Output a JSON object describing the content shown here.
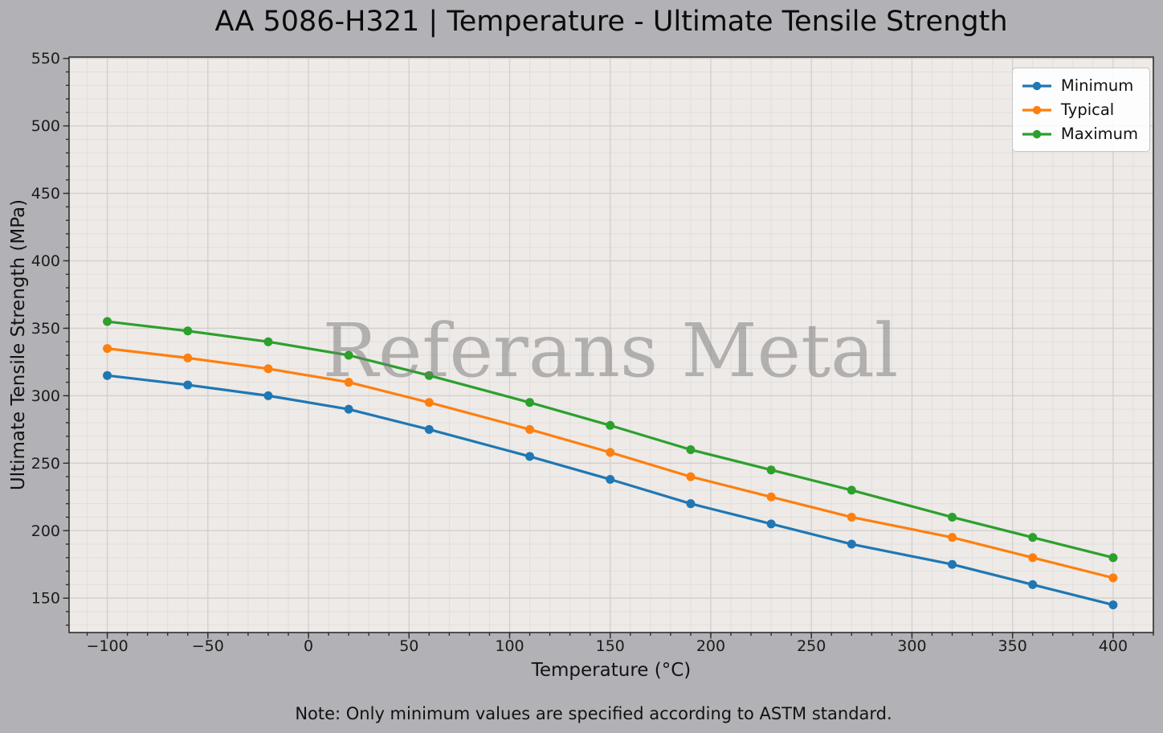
{
  "figure": {
    "background": "#b2b1b6",
    "plot_background": "#edeae8",
    "grid_minor_color": "#e1dedb",
    "grid_major_color": "#d2cfcd",
    "spine_color": "#2e2e2e",
    "tick_label_color": "#1b1b1b",
    "watermark_color": "#787878",
    "legend_background": "#ffffff",
    "legend_border_color": "#c6c6c6"
  },
  "chart_data": {
    "type": "line",
    "title": "AA 5086-H321 | Temperature - Ultimate Tensile Strength",
    "xlabel": "Temperature (°C)",
    "ylabel": "Ultimate Tensile Strength (MPa)",
    "note": "Note: Only minimum values are specified according to ASTM standard.",
    "watermark": "Referans Metal",
    "x": [
      -100,
      -60,
      -20,
      20,
      60,
      110,
      150,
      190,
      230,
      270,
      320,
      360,
      400
    ],
    "series": [
      {
        "name": "Minimum",
        "color": "#1f77b4",
        "values": [
          315,
          308,
          300,
          290,
          275,
          255,
          238,
          220,
          205,
          190,
          175,
          160,
          145
        ]
      },
      {
        "name": "Typical",
        "color": "#ff7f0e",
        "values": [
          335,
          328,
          320,
          310,
          295,
          275,
          258,
          240,
          225,
          210,
          195,
          180,
          165
        ]
      },
      {
        "name": "Maximum",
        "color": "#2ca02c",
        "values": [
          355,
          348,
          340,
          330,
          315,
          295,
          278,
          260,
          245,
          230,
          210,
          195,
          180
        ]
      }
    ],
    "xlim": [
      -119,
      420
    ],
    "ylim": [
      124.5,
      551
    ],
    "xticks": [
      -100,
      -50,
      0,
      50,
      100,
      150,
      200,
      250,
      300,
      350,
      400
    ],
    "yticks": [
      150,
      200,
      250,
      300,
      350,
      400,
      450,
      500,
      550
    ],
    "minor_step_x": 10,
    "minor_step_y": 10,
    "grid": "on",
    "legend_position": "upper right",
    "legend_labels": [
      "Minimum",
      "Typical",
      "Maximum"
    ]
  }
}
